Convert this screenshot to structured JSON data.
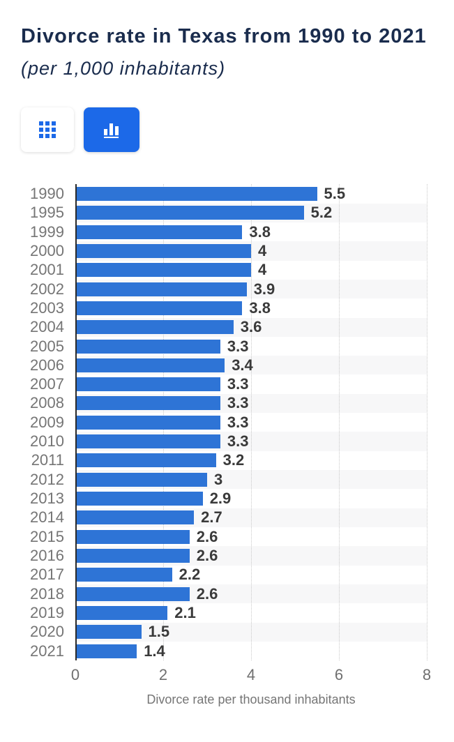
{
  "header": {
    "title": "Divorce rate in Texas from 1990 to 2021",
    "subtitle": "(per 1,000 inhabitants)"
  },
  "toolbar": {
    "table_view": {
      "icon": "table-icon",
      "active": false
    },
    "chart_view": {
      "icon": "bar-chart-icon",
      "active": true
    }
  },
  "colors": {
    "bar_blue": "#2e74d6",
    "button_blue": "#1c69e8",
    "title_navy": "#1a2c4d",
    "label_gray": "#757575",
    "value_gray": "#3a3a3a",
    "stripe": "#f7f7f8"
  },
  "chart_data": {
    "type": "bar",
    "orientation": "horizontal",
    "title": "Divorce rate in Texas from 1990 to 2021",
    "subtitle": "(per 1,000 inhabitants)",
    "categories": [
      "1990",
      "1995",
      "1999",
      "2000",
      "2001",
      "2002",
      "2003",
      "2004",
      "2005",
      "2006",
      "2007",
      "2008",
      "2009",
      "2010",
      "2011",
      "2012",
      "2013",
      "2014",
      "2015",
      "2016",
      "2017",
      "2018",
      "2019",
      "2020",
      "2021"
    ],
    "values": [
      5.5,
      5.2,
      3.8,
      4,
      4,
      3.9,
      3.8,
      3.6,
      3.3,
      3.4,
      3.3,
      3.3,
      3.3,
      3.3,
      3.2,
      3,
      2.9,
      2.7,
      2.6,
      2.6,
      2.2,
      2.6,
      2.1,
      1.5,
      1.4
    ],
    "xlabel": "Divorce rate per thousand inhabitants",
    "ylabel": "",
    "xlim": [
      0,
      8
    ],
    "xticks": [
      0,
      2,
      4,
      6,
      8
    ],
    "grid": "vertical-dotted",
    "value_labels": true,
    "zebra_stripes": true
  }
}
